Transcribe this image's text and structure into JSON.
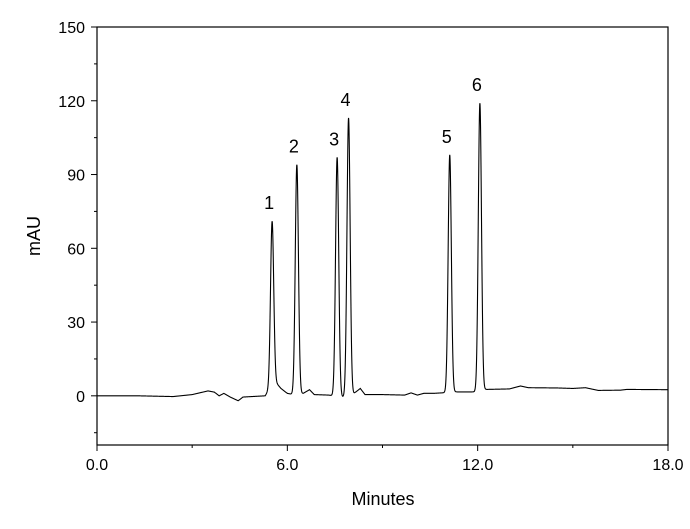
{
  "chart_data": {
    "type": "line",
    "title": "",
    "xlabel": "Minutes",
    "ylabel": "mAU",
    "xlim": [
      0,
      18
    ],
    "ylim": [
      -20,
      150
    ],
    "x_ticks": [
      "0.0",
      "6.0",
      "12.0",
      "18.0"
    ],
    "x_tick_values": [
      0,
      6,
      12,
      18
    ],
    "x_minor_ticks": [
      3,
      9,
      15
    ],
    "y_ticks": [
      "0",
      "30",
      "60",
      "90",
      "120",
      "150"
    ],
    "y_tick_values": [
      0,
      30,
      60,
      90,
      120,
      150
    ],
    "y_minor_ticks": [
      -15,
      15,
      45,
      75,
      105,
      135
    ],
    "grid": false,
    "line_color": "#000000",
    "peaks": [
      {
        "label": "1",
        "time": 5.52,
        "height": 71
      },
      {
        "label": "2",
        "time": 6.3,
        "height": 94
      },
      {
        "label": "3",
        "time": 7.57,
        "height": 97
      },
      {
        "label": "4",
        "time": 7.93,
        "height": 113
      },
      {
        "label": "5",
        "time": 11.12,
        "height": 98
      },
      {
        "label": "6",
        "time": 12.07,
        "height": 119
      }
    ],
    "baseline": [
      [
        0,
        0
      ],
      [
        1.3,
        0
      ],
      [
        2.4,
        -0.3
      ],
      [
        3.0,
        0.5
      ],
      [
        3.5,
        2
      ],
      [
        3.7,
        1.5
      ],
      [
        3.85,
        0
      ],
      [
        4.0,
        1
      ],
      [
        4.2,
        -0.5
      ],
      [
        4.45,
        -2
      ],
      [
        4.6,
        -0.5
      ],
      [
        5.3,
        0
      ],
      [
        5.6,
        6
      ],
      [
        5.8,
        3
      ],
      [
        6.0,
        1
      ],
      [
        6.2,
        0.5
      ],
      [
        6.5,
        1
      ],
      [
        6.7,
        2.5
      ],
      [
        6.85,
        0.5
      ],
      [
        7.3,
        0.3
      ],
      [
        7.75,
        -0.5
      ],
      [
        8.1,
        1
      ],
      [
        8.3,
        3
      ],
      [
        8.45,
        0.5
      ],
      [
        9.0,
        0.5
      ],
      [
        9.7,
        0.3
      ],
      [
        9.9,
        1.2
      ],
      [
        10.1,
        0.3
      ],
      [
        10.3,
        1
      ],
      [
        10.6,
        1
      ],
      [
        11.0,
        1.3
      ],
      [
        11.3,
        1.6
      ],
      [
        11.9,
        1.6
      ],
      [
        12.25,
        2.6
      ],
      [
        13.0,
        2.8
      ],
      [
        13.35,
        4
      ],
      [
        13.6,
        3.3
      ],
      [
        14.5,
        3.2
      ],
      [
        15.0,
        3
      ],
      [
        15.4,
        3.3
      ],
      [
        15.8,
        2.2
      ],
      [
        16.5,
        2.3
      ],
      [
        16.7,
        2.6
      ],
      [
        18,
        2.5
      ]
    ]
  }
}
